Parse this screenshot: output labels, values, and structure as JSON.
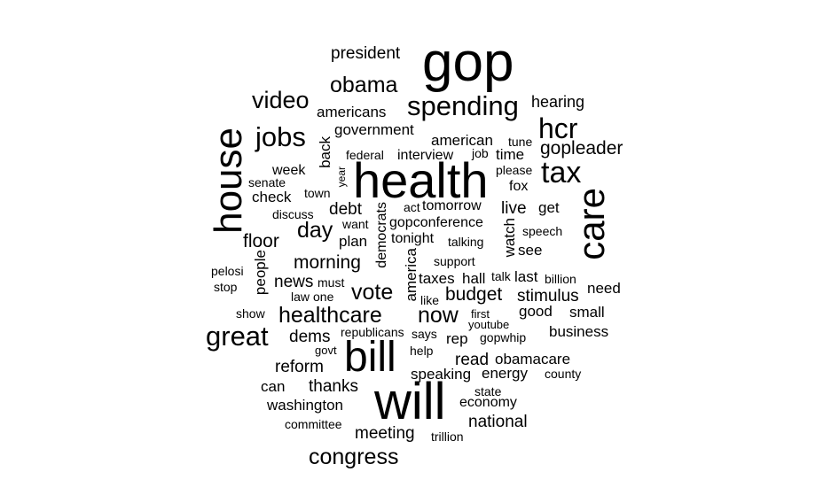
{
  "words": [
    {
      "text": "gop",
      "weight": 10,
      "orientation": "horizontal"
    },
    {
      "text": "health",
      "weight": 9,
      "orientation": "horizontal"
    },
    {
      "text": "will",
      "weight": 9,
      "orientation": "horizontal"
    },
    {
      "text": "house",
      "weight": 8,
      "orientation": "vertical"
    },
    {
      "text": "bill",
      "weight": 8,
      "orientation": "horizontal"
    },
    {
      "text": "care",
      "weight": 8,
      "orientation": "vertical"
    },
    {
      "text": "tax",
      "weight": 7,
      "orientation": "horizontal"
    },
    {
      "text": "hcr",
      "weight": 6,
      "orientation": "horizontal"
    },
    {
      "text": "great",
      "weight": 6,
      "orientation": "horizontal"
    },
    {
      "text": "spending",
      "weight": 6,
      "orientation": "horizontal"
    },
    {
      "text": "jobs",
      "weight": 6,
      "orientation": "horizontal"
    },
    {
      "text": "video",
      "weight": 5,
      "orientation": "horizontal"
    },
    {
      "text": "obama",
      "weight": 5,
      "orientation": "horizontal"
    },
    {
      "text": "congress",
      "weight": 5,
      "orientation": "horizontal"
    },
    {
      "text": "healthcare",
      "weight": 5,
      "orientation": "horizontal"
    },
    {
      "text": "vote",
      "weight": 5,
      "orientation": "horizontal"
    },
    {
      "text": "now",
      "weight": 5,
      "orientation": "horizontal"
    },
    {
      "text": "day",
      "weight": 5,
      "orientation": "horizontal"
    },
    {
      "text": "gopleader",
      "weight": 4,
      "orientation": "horizontal"
    },
    {
      "text": "budget",
      "weight": 4,
      "orientation": "horizontal"
    },
    {
      "text": "morning",
      "weight": 4,
      "orientation": "horizontal"
    },
    {
      "text": "president",
      "weight": 3,
      "orientation": "horizontal"
    },
    {
      "text": "hearing",
      "weight": 3,
      "orientation": "horizontal"
    },
    {
      "text": "americans",
      "weight": 3,
      "orientation": "horizontal"
    },
    {
      "text": "government",
      "weight": 3,
      "orientation": "horizontal"
    },
    {
      "text": "american",
      "weight": 3,
      "orientation": "horizontal"
    },
    {
      "text": "tune",
      "weight": 2,
      "orientation": "horizontal"
    },
    {
      "text": "back",
      "weight": 3,
      "orientation": "vertical"
    },
    {
      "text": "federal",
      "weight": 2,
      "orientation": "horizontal"
    },
    {
      "text": "interview",
      "weight": 3,
      "orientation": "horizontal"
    },
    {
      "text": "job",
      "weight": 2,
      "orientation": "horizontal"
    },
    {
      "text": "time",
      "weight": 3,
      "orientation": "horizontal"
    },
    {
      "text": "week",
      "weight": 3,
      "orientation": "horizontal"
    },
    {
      "text": "please",
      "weight": 2,
      "orientation": "horizontal"
    },
    {
      "text": "senate",
      "weight": 2,
      "orientation": "horizontal"
    },
    {
      "text": "year",
      "weight": 2,
      "orientation": "vertical"
    },
    {
      "text": "fox",
      "weight": 3,
      "orientation": "horizontal"
    },
    {
      "text": "check",
      "weight": 3,
      "orientation": "horizontal"
    },
    {
      "text": "town",
      "weight": 2,
      "orientation": "horizontal"
    },
    {
      "text": "act",
      "weight": 2,
      "orientation": "horizontal"
    },
    {
      "text": "tomorrow",
      "weight": 3,
      "orientation": "horizontal"
    },
    {
      "text": "debt",
      "weight": 3,
      "orientation": "horizontal"
    },
    {
      "text": "live",
      "weight": 3,
      "orientation": "horizontal"
    },
    {
      "text": "get",
      "weight": 3,
      "orientation": "horizontal"
    },
    {
      "text": "discuss",
      "weight": 2,
      "orientation": "horizontal"
    },
    {
      "text": "democrats",
      "weight": 3,
      "orientation": "vertical"
    },
    {
      "text": "gopconference",
      "weight": 3,
      "orientation": "horizontal"
    },
    {
      "text": "want",
      "weight": 2,
      "orientation": "horizontal"
    },
    {
      "text": "speech",
      "weight": 2,
      "orientation": "horizontal"
    },
    {
      "text": "watch",
      "weight": 3,
      "orientation": "vertical"
    },
    {
      "text": "floor",
      "weight": 4,
      "orientation": "horizontal"
    },
    {
      "text": "plan",
      "weight": 3,
      "orientation": "horizontal"
    },
    {
      "text": "tonight",
      "weight": 3,
      "orientation": "horizontal"
    },
    {
      "text": "talking",
      "weight": 2,
      "orientation": "horizontal"
    },
    {
      "text": "see",
      "weight": 3,
      "orientation": "horizontal"
    },
    {
      "text": "people",
      "weight": 3,
      "orientation": "vertical"
    },
    {
      "text": "america",
      "weight": 3,
      "orientation": "vertical"
    },
    {
      "text": "support",
      "weight": 2,
      "orientation": "horizontal"
    },
    {
      "text": "pelosi",
      "weight": 2,
      "orientation": "horizontal"
    },
    {
      "text": "stop",
      "weight": 2,
      "orientation": "horizontal"
    },
    {
      "text": "news",
      "weight": 3,
      "orientation": "horizontal"
    },
    {
      "text": "must",
      "weight": 2,
      "orientation": "horizontal"
    },
    {
      "text": "taxes",
      "weight": 3,
      "orientation": "horizontal"
    },
    {
      "text": "hall",
      "weight": 3,
      "orientation": "horizontal"
    },
    {
      "text": "talk",
      "weight": 2,
      "orientation": "horizontal"
    },
    {
      "text": "last",
      "weight": 3,
      "orientation": "horizontal"
    },
    {
      "text": "billion",
      "weight": 2,
      "orientation": "horizontal"
    },
    {
      "text": "need",
      "weight": 3,
      "orientation": "horizontal"
    },
    {
      "text": "law",
      "weight": 2,
      "orientation": "horizontal"
    },
    {
      "text": "one",
      "weight": 2,
      "orientation": "horizontal"
    },
    {
      "text": "like",
      "weight": 2,
      "orientation": "horizontal"
    },
    {
      "text": "stimulus",
      "weight": 3,
      "orientation": "horizontal"
    },
    {
      "text": "show",
      "weight": 2,
      "orientation": "horizontal"
    },
    {
      "text": "first",
      "weight": 2,
      "orientation": "horizontal"
    },
    {
      "text": "good",
      "weight": 3,
      "orientation": "horizontal"
    },
    {
      "text": "small",
      "weight": 3,
      "orientation": "horizontal"
    },
    {
      "text": "youtube",
      "weight": 2,
      "orientation": "horizontal"
    },
    {
      "text": "dems",
      "weight": 3,
      "orientation": "horizontal"
    },
    {
      "text": "republicans",
      "weight": 2,
      "orientation": "horizontal"
    },
    {
      "text": "says",
      "weight": 2,
      "orientation": "horizontal"
    },
    {
      "text": "rep",
      "weight": 3,
      "orientation": "horizontal"
    },
    {
      "text": "gopwhip",
      "weight": 2,
      "orientation": "horizontal"
    },
    {
      "text": "business",
      "weight": 3,
      "orientation": "horizontal"
    },
    {
      "text": "govt",
      "weight": 2,
      "orientation": "horizontal"
    },
    {
      "text": "help",
      "weight": 2,
      "orientation": "horizontal"
    },
    {
      "text": "read",
      "weight": 3,
      "orientation": "horizontal"
    },
    {
      "text": "obamacare",
      "weight": 3,
      "orientation": "horizontal"
    },
    {
      "text": "reform",
      "weight": 3,
      "orientation": "horizontal"
    },
    {
      "text": "speaking",
      "weight": 3,
      "orientation": "horizontal"
    },
    {
      "text": "energy",
      "weight": 3,
      "orientation": "horizontal"
    },
    {
      "text": "county",
      "weight": 2,
      "orientation": "horizontal"
    },
    {
      "text": "can",
      "weight": 3,
      "orientation": "horizontal"
    },
    {
      "text": "thanks",
      "weight": 3,
      "orientation": "horizontal"
    },
    {
      "text": "state",
      "weight": 2,
      "orientation": "horizontal"
    },
    {
      "text": "washington",
      "weight": 3,
      "orientation": "horizontal"
    },
    {
      "text": "economy",
      "weight": 3,
      "orientation": "horizontal"
    },
    {
      "text": "national",
      "weight": 3,
      "orientation": "horizontal"
    },
    {
      "text": "committee",
      "weight": 2,
      "orientation": "horizontal"
    },
    {
      "text": "meeting",
      "weight": 3,
      "orientation": "horizontal"
    },
    {
      "text": "trillion",
      "weight": 2,
      "orientation": "horizontal"
    }
  ]
}
